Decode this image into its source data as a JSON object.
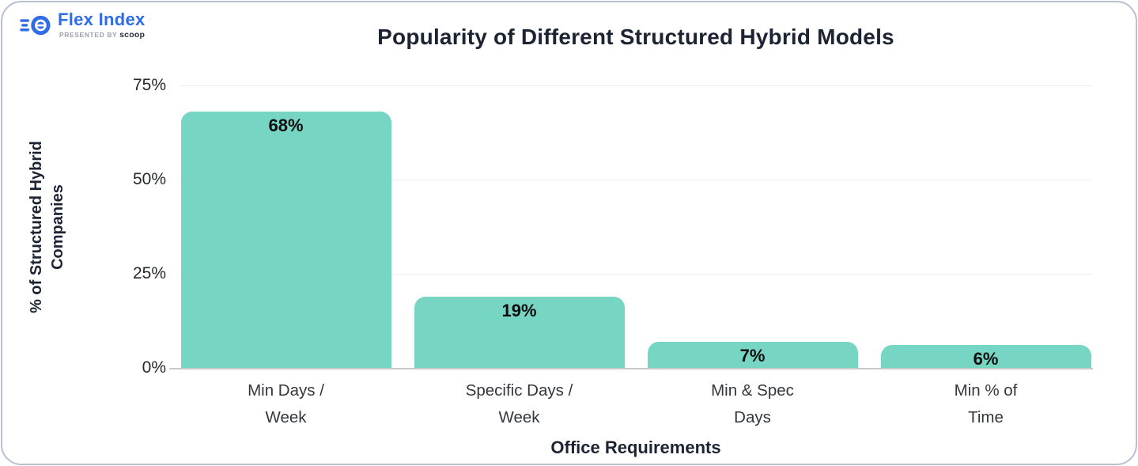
{
  "logo": {
    "name": "Flex Index",
    "presented_by": "PRESENTED BY",
    "presenter": "scoop",
    "brand_blue": "#2f6ce6"
  },
  "chart_data": {
    "type": "bar",
    "title": "Popularity of Different Structured Hybrid Models",
    "xlabel": "Office Requirements",
    "ylabel": "% of Structured Hybrid Companies",
    "ylabel_lines": [
      "% of Structured Hybrid",
      "Companies"
    ],
    "categories": [
      "Min Days / Week",
      "Specific Days / Week",
      "Min & Spec Days",
      "Min % of Time"
    ],
    "category_lines": [
      [
        "Min Days /",
        "Week"
      ],
      [
        "Specific Days /",
        "Week"
      ],
      [
        "Min & Spec",
        "Days"
      ],
      [
        "Min % of",
        "Time"
      ]
    ],
    "values": [
      68,
      19,
      7,
      6
    ],
    "value_labels": [
      "68%",
      "19%",
      "7%",
      "6%"
    ],
    "y_ticks": [
      {
        "value": 75,
        "label": "75%"
      },
      {
        "value": 50,
        "label": "50%"
      },
      {
        "value": 25,
        "label": "25%"
      },
      {
        "value": 0,
        "label": "0%"
      }
    ],
    "ylim": [
      0,
      75
    ],
    "grid": true,
    "legend": false,
    "bar_color": "#77d5c3",
    "gridline_color": "#ececec",
    "title_color": "#1c2433"
  }
}
